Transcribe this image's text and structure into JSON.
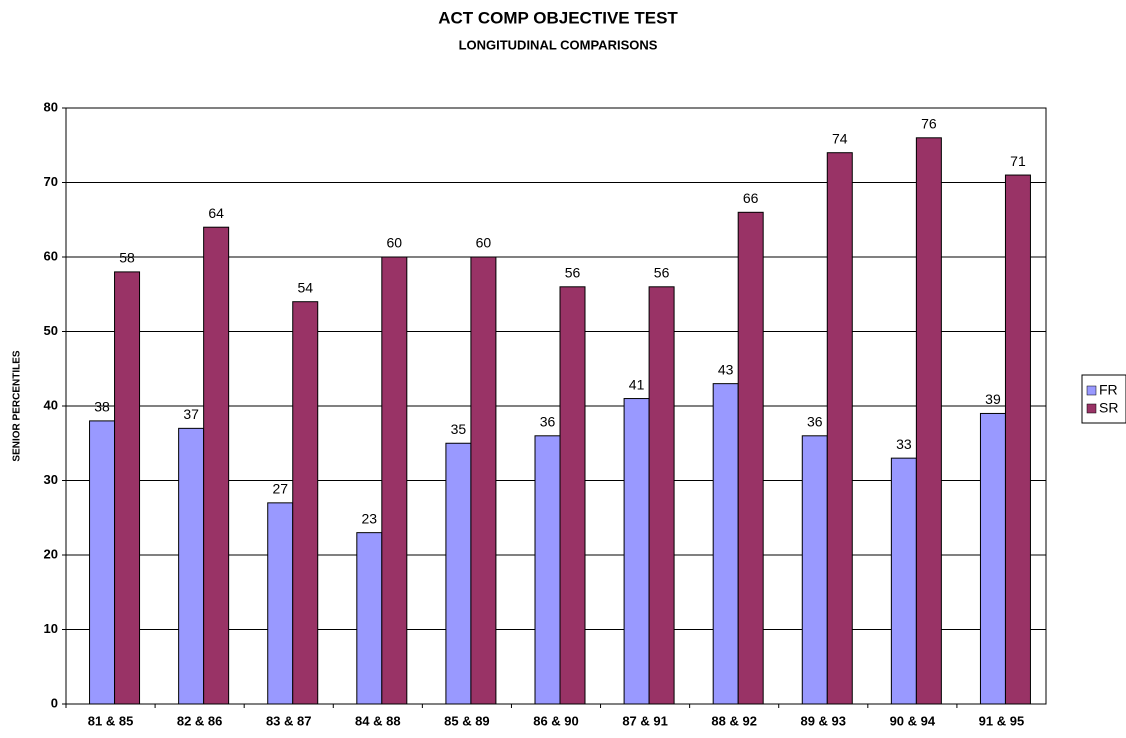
{
  "chart_data": {
    "type": "bar",
    "title": "ACT COMP OBJECTIVE TEST",
    "subtitle": "LONGITUDINAL COMPARISONS",
    "y_label": "SENIOR PERCENTILES",
    "categories": [
      "81 & 85",
      "82 & 86",
      "83 & 87",
      "84 & 88",
      "85 & 89",
      "86 & 90",
      "87 & 91",
      "88 & 92",
      "89 & 93",
      "90 & 94",
      "91 & 95"
    ],
    "series": [
      {
        "name": "FR",
        "color": "#9999ff",
        "values": [
          38,
          37,
          27,
          23,
          35,
          36,
          41,
          43,
          36,
          33,
          39
        ]
      },
      {
        "name": "SR",
        "color": "#993366",
        "values": [
          58,
          64,
          54,
          60,
          60,
          56,
          56,
          66,
          74,
          76,
          71
        ]
      }
    ],
    "ylim": [
      0,
      80
    ],
    "yticks": [
      0,
      10,
      20,
      30,
      40,
      50,
      60,
      70,
      80
    ],
    "grid": true,
    "legend": "right"
  }
}
